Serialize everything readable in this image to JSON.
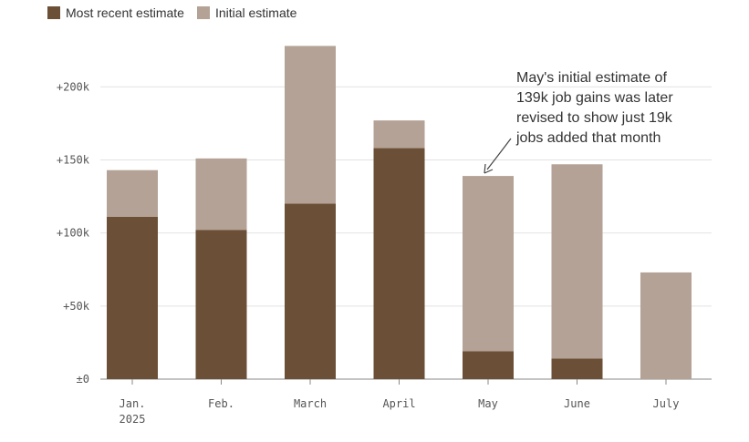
{
  "chart_data": {
    "type": "bar",
    "stacked": "overlay",
    "categories": [
      "Jan.\n2025",
      "Feb.",
      "March",
      "April",
      "May",
      "June",
      "July"
    ],
    "series": [
      {
        "name": "Most recent estimate",
        "color": "#6b4f36",
        "values": [
          111,
          102,
          120,
          158,
          19,
          14,
          null
        ]
      },
      {
        "name": "Initial estimate",
        "color": "#b3a295",
        "values": [
          143,
          151,
          228,
          177,
          139,
          147,
          73
        ]
      }
    ],
    "y_ticks": [
      "±0",
      "+50k",
      "+100k",
      "+150k",
      "+200k"
    ],
    "y_tick_values": [
      0,
      50,
      100,
      150,
      200
    ],
    "ylim": [
      0,
      235
    ],
    "grid": true,
    "legend": "top-left",
    "annotation": {
      "lines": [
        "May's initial estimate of",
        "139k job gains was later",
        "revised to show just 19k",
        "jobs added that month"
      ],
      "target_category": "May"
    }
  }
}
